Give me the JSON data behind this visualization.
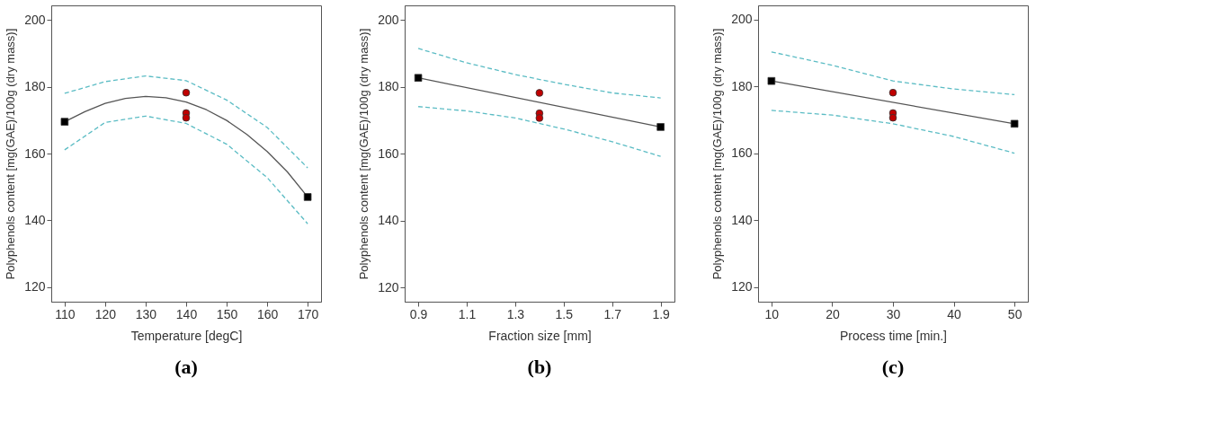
{
  "chart_data": [
    {
      "type": "line",
      "annotations": [
        "(a)"
      ],
      "xlabel": "Temperature [degC]",
      "ylabel": "Polyphenols content [mg(GAE)/100g (dry mass)]",
      "xlim": [
        106.7,
        173.3
      ],
      "ylim": [
        115.7,
        204.3
      ],
      "xticks": [
        110,
        120,
        130,
        140,
        150,
        160,
        170
      ],
      "yticks": [
        120,
        140,
        160,
        180,
        200
      ],
      "grid": false,
      "series": [
        {
          "type": "line",
          "color": "#5bbcc4",
          "line_style": "dashed",
          "marker": "none",
          "x": [
            110,
            120,
            130,
            140,
            150,
            160,
            170
          ],
          "values": [
            178.0,
            181.5,
            183.2,
            181.8,
            176.0,
            167.8,
            155.7
          ]
        },
        {
          "type": "line",
          "color": "#5bbcc4",
          "line_style": "dashed",
          "marker": "none",
          "x": [
            110,
            120,
            130,
            140,
            150,
            160,
            170
          ],
          "values": [
            161.1,
            169.3,
            171.2,
            169.0,
            162.8,
            152.8,
            139.0
          ]
        },
        {
          "type": "line",
          "color": "#555555",
          "line_style": "solid",
          "marker": "none",
          "x": [
            110,
            115,
            120,
            125,
            130,
            135,
            140,
            145,
            150,
            155,
            160,
            165,
            170
          ],
          "values": [
            169.5,
            172.5,
            175.0,
            176.5,
            177.1,
            176.7,
            175.4,
            173.1,
            169.9,
            165.7,
            160.6,
            154.5,
            147.0
          ]
        },
        {
          "type": "scatter",
          "color": "#000000",
          "marker": "square",
          "x": [
            110,
            170
          ],
          "values": [
            169.5,
            147.0
          ]
        },
        {
          "type": "scatter",
          "color": "#c00000",
          "marker": "circle",
          "x": [
            140,
            140,
            140
          ],
          "values": [
            178.2,
            172.1,
            170.7
          ]
        }
      ]
    },
    {
      "type": "line",
      "annotations": [
        "(b)"
      ],
      "xlabel": "Fraction size [mm]",
      "ylabel": "Polyphenols content [mg(GAE)/100g (dry mass)]",
      "xlim": [
        0.844,
        1.957
      ],
      "ylim": [
        115.7,
        204.4
      ],
      "xticks": [
        0.9,
        1.1,
        1.3,
        1.5,
        1.7,
        1.9
      ],
      "yticks": [
        120,
        140,
        160,
        180,
        200
      ],
      "grid": false,
      "series": [
        {
          "type": "line",
          "color": "#5bbcc4",
          "line_style": "dashed",
          "marker": "none",
          "x": [
            0.9,
            1.1,
            1.3,
            1.5,
            1.7,
            1.9
          ],
          "values": [
            191.5,
            187.2,
            183.7,
            180.8,
            178.2,
            176.7
          ]
        },
        {
          "type": "line",
          "color": "#5bbcc4",
          "line_style": "dashed",
          "marker": "none",
          "x": [
            0.9,
            1.1,
            1.3,
            1.5,
            1.7,
            1.9
          ],
          "values": [
            174.1,
            172.8,
            170.7,
            167.4,
            163.6,
            159.2
          ]
        },
        {
          "type": "line",
          "color": "#555555",
          "line_style": "solid",
          "marker": "none",
          "x": [
            0.9,
            1.9
          ],
          "values": [
            182.7,
            168.0
          ]
        },
        {
          "type": "scatter",
          "color": "#000000",
          "marker": "square",
          "x": [
            0.9,
            1.9
          ],
          "values": [
            182.7,
            168.0
          ]
        },
        {
          "type": "scatter",
          "color": "#c00000",
          "marker": "circle",
          "x": [
            1.4,
            1.4,
            1.4
          ],
          "values": [
            178.2,
            172.1,
            170.7
          ]
        }
      ]
    },
    {
      "type": "line",
      "annotations": [
        "(c)"
      ],
      "xlabel": "Process time [min.]",
      "ylabel": "Polyphenols content [mg(GAE)/100g (dry mass)]",
      "xlim": [
        7.8,
        52.2
      ],
      "ylim": [
        115.6,
        204.2
      ],
      "xticks": [
        10,
        20,
        30,
        40,
        50
      ],
      "yticks": [
        120,
        140,
        160,
        180,
        200
      ],
      "grid": false,
      "series": [
        {
          "type": "line",
          "color": "#5bbcc4",
          "line_style": "dashed",
          "marker": "none",
          "x": [
            10,
            20,
            30,
            40,
            50
          ],
          "values": [
            190.3,
            186.3,
            181.6,
            179.2,
            177.5
          ]
        },
        {
          "type": "line",
          "color": "#5bbcc4",
          "line_style": "dashed",
          "marker": "none",
          "x": [
            10,
            20,
            30,
            40,
            50
          ],
          "values": [
            172.8,
            171.4,
            168.8,
            165.0,
            160.0
          ]
        },
        {
          "type": "line",
          "color": "#555555",
          "line_style": "solid",
          "marker": "none",
          "x": [
            10,
            50
          ],
          "values": [
            181.6,
            168.8
          ]
        },
        {
          "type": "scatter",
          "color": "#000000",
          "marker": "square",
          "x": [
            10,
            50
          ],
          "values": [
            181.6,
            168.8
          ]
        },
        {
          "type": "scatter",
          "color": "#c00000",
          "marker": "circle",
          "x": [
            30,
            30,
            30
          ],
          "values": [
            178.1,
            172.0,
            170.6
          ]
        }
      ]
    }
  ]
}
